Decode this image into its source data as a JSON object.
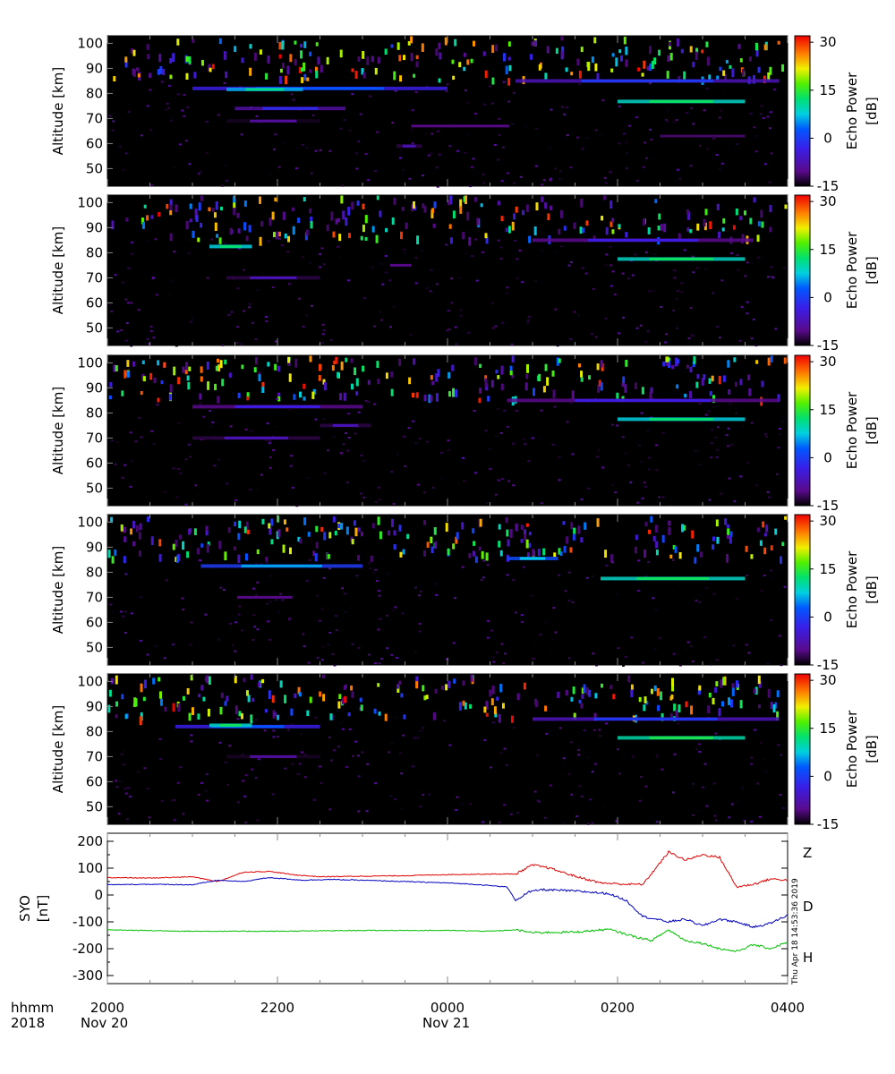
{
  "chart_data": [
    {
      "type": "heatmap",
      "panel": 1,
      "ylabel": "Altitude [km]",
      "yticks": [
        50,
        60,
        70,
        80,
        90,
        100
      ],
      "ylim": [
        43,
        103
      ],
      "xlim_hours": [
        20,
        28
      ],
      "colorbar": {
        "label_line1": "Echo Power",
        "label_line2": "[dB]",
        "ticks": [
          "30",
          "15",
          "0",
          "-15"
        ],
        "range": [
          -15,
          32
        ]
      },
      "layers": [
        {
          "alt": 82,
          "t0": 21.0,
          "t1": 24.0,
          "dB": -3
        },
        {
          "alt": 81.6,
          "t0": 21.4,
          "t1": 22.3,
          "dB": 3
        },
        {
          "alt": 74,
          "t0": 21.5,
          "t1": 22.8,
          "dB": -6
        },
        {
          "alt": 69,
          "t0": 21.4,
          "t1": 22.5,
          "dB": -10
        },
        {
          "alt": 67,
          "t0": 23.0,
          "t1": 25.3,
          "dB": -11
        },
        {
          "alt": 76.8,
          "t0": 26.0,
          "t1": 27.5,
          "dB": 5
        },
        {
          "alt": 85,
          "t0": 24.8,
          "t1": 27.9,
          "dB": -5
        },
        {
          "alt": 63,
          "t0": 26.0,
          "t1": 28.0,
          "dB": -12
        },
        {
          "alt": 59,
          "t0": 23.4,
          "t1": 23.7,
          "dB": -9
        }
      ]
    },
    {
      "type": "heatmap",
      "panel": 2,
      "ylabel": "Altitude [km]",
      "yticks": [
        50,
        60,
        70,
        80,
        90,
        100
      ],
      "ylim": [
        43,
        103
      ],
      "xlim_hours": [
        20,
        28
      ],
      "colorbar": {
        "label_line1": "Echo Power",
        "label_line2": "[dB]",
        "ticks": [
          "30",
          "15",
          "0",
          "-15"
        ],
        "range": [
          -15,
          32
        ]
      },
      "layers": [
        {
          "alt": 82.5,
          "t0": 21.2,
          "t1": 21.7,
          "dB": 4
        },
        {
          "alt": 70,
          "t0": 21.4,
          "t1": 22.5,
          "dB": -9
        },
        {
          "alt": 77.5,
          "t0": 26.0,
          "t1": 27.5,
          "dB": 5
        },
        {
          "alt": 85,
          "t0": 25.0,
          "t1": 27.6,
          "dB": -7
        },
        {
          "alt": 75,
          "t0": 23.2,
          "t1": 23.7,
          "dB": -11
        }
      ]
    },
    {
      "type": "heatmap",
      "panel": 3,
      "ylabel": "Altitude [km]",
      "yticks": [
        50,
        60,
        70,
        80,
        90,
        100
      ],
      "ylim": [
        43,
        103
      ],
      "xlim_hours": [
        20,
        28
      ],
      "colorbar": {
        "label_line1": "Echo Power",
        "label_line2": "[dB]",
        "ticks": [
          "30",
          "15",
          "0",
          "-15"
        ],
        "range": [
          -15,
          32
        ]
      },
      "layers": [
        {
          "alt": 82.5,
          "t0": 21.0,
          "t1": 23.0,
          "dB": -7
        },
        {
          "alt": 70,
          "t0": 21.0,
          "t1": 22.5,
          "dB": -9
        },
        {
          "alt": 77.5,
          "t0": 26.0,
          "t1": 27.5,
          "dB": 4
        },
        {
          "alt": 75,
          "t0": 22.5,
          "t1": 23.1,
          "dB": -9
        },
        {
          "alt": 85,
          "t0": 24.7,
          "t1": 27.9,
          "dB": -7
        }
      ]
    },
    {
      "type": "heatmap",
      "panel": 4,
      "ylabel": "Altitude [km]",
      "yticks": [
        50,
        60,
        70,
        80,
        90,
        100
      ],
      "ylim": [
        43,
        103
      ],
      "xlim_hours": [
        20,
        28
      ],
      "colorbar": {
        "label_line1": "Echo Power",
        "label_line2": "[dB]",
        "ticks": [
          "30",
          "15",
          "0",
          "-15"
        ],
        "range": [
          -15,
          32
        ]
      },
      "layers": [
        {
          "alt": 82.5,
          "t0": 21.1,
          "t1": 23.0,
          "dB": -1
        },
        {
          "alt": 85.5,
          "t0": 24.7,
          "t1": 25.3,
          "dB": 0
        },
        {
          "alt": 77.5,
          "t0": 25.8,
          "t1": 27.5,
          "dB": 5
        },
        {
          "alt": 70,
          "t0": 21.2,
          "t1": 22.5,
          "dB": -11
        }
      ]
    },
    {
      "type": "heatmap",
      "panel": 5,
      "ylabel": "Altitude [km]",
      "yticks": [
        50,
        60,
        70,
        80,
        90,
        100
      ],
      "ylim": [
        43,
        103
      ],
      "xlim_hours": [
        20,
        28
      ],
      "colorbar": {
        "label_line1": "Echo Power",
        "label_line2": "[dB]",
        "ticks": [
          "30",
          "15",
          "0",
          "-15"
        ],
        "range": [
          -15,
          32
        ]
      },
      "layers": [
        {
          "alt": 82,
          "t0": 20.8,
          "t1": 22.5,
          "dB": -3
        },
        {
          "alt": 82.5,
          "t0": 21.2,
          "t1": 21.7,
          "dB": 5
        },
        {
          "alt": 70,
          "t0": 21.4,
          "t1": 22.5,
          "dB": -10
        },
        {
          "alt": 77.5,
          "t0": 26.0,
          "t1": 27.5,
          "dB": 6
        },
        {
          "alt": 85,
          "t0": 25.0,
          "t1": 27.9,
          "dB": -5
        }
      ]
    },
    {
      "type": "line",
      "panel": 6,
      "ylabel_line1": "SYO",
      "ylabel_line2": "[nT]",
      "yticks": [
        200,
        100,
        0,
        -100,
        -200,
        -300
      ],
      "ylim": [
        -330,
        230
      ],
      "xlim_hours": [
        20,
        28
      ],
      "series": [
        {
          "name": "Z",
          "color": "#e00000",
          "x": [
            20,
            20.5,
            21,
            21.3,
            21.6,
            21.9,
            22.2,
            22.5,
            23,
            23.5,
            24,
            24.5,
            24.8,
            25,
            25.2,
            25.5,
            25.8,
            26.1,
            26.3,
            26.6,
            26.8,
            27,
            27.2,
            27.4,
            27.6,
            27.8,
            28
          ],
          "values": [
            65,
            63,
            68,
            50,
            85,
            88,
            75,
            68,
            70,
            72,
            76,
            78,
            78,
            112,
            100,
            70,
            45,
            40,
            40,
            160,
            130,
            150,
            140,
            30,
            40,
            60,
            55
          ]
        },
        {
          "name": "D",
          "color": "#00c000",
          "x": [
            20,
            21,
            22,
            23,
            24,
            24.5,
            24.8,
            25,
            25.5,
            25.9,
            26.2,
            26.4,
            26.6,
            26.8,
            27,
            27.2,
            27.4,
            27.6,
            27.8,
            28
          ],
          "values": [
            -130,
            -135,
            -135,
            -132,
            -132,
            -135,
            -130,
            -140,
            -138,
            -128,
            -155,
            -170,
            -130,
            -170,
            -180,
            -200,
            -210,
            -185,
            -200,
            -175
          ]
        },
        {
          "name": "H",
          "color": "#0000c0",
          "x": [
            20,
            20.5,
            21,
            21.3,
            21.6,
            21.9,
            22.3,
            22.6,
            23,
            23.5,
            24,
            24.3,
            24.7,
            24.8,
            24.95,
            25.1,
            25.5,
            25.9,
            26.1,
            26.3,
            26.6,
            26.8,
            27,
            27.2,
            27.4,
            27.6,
            27.8,
            28
          ],
          "values": [
            38,
            40,
            38,
            55,
            50,
            65,
            55,
            58,
            55,
            50,
            45,
            40,
            30,
            -20,
            10,
            20,
            15,
            5,
            -20,
            -80,
            -100,
            -90,
            -115,
            -90,
            -100,
            -120,
            -105,
            -75
          ]
        }
      ]
    }
  ],
  "x_axis": {
    "ticks_hours": [
      20,
      22,
      24,
      26,
      28
    ],
    "tick_labels": [
      "2000",
      "2200",
      "0000",
      "0200",
      "0400"
    ],
    "date_labels": [
      "Nov 20",
      "Nov 21"
    ],
    "row_label_1": "hhmm",
    "row_label_2": "2018"
  },
  "timestamp": "Thu Apr 18 14:53:36 2019"
}
